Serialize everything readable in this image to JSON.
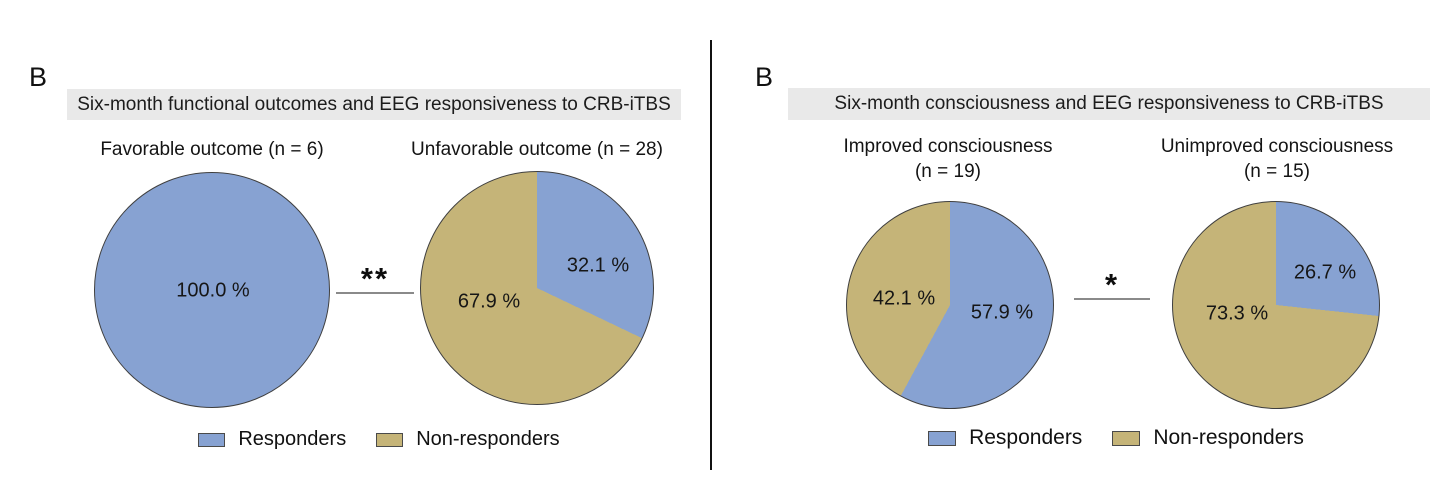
{
  "colors": {
    "Responders": "#87A2D2",
    "Non-responders": "#C5B478",
    "pie_border": "#3f3f3f",
    "title_background": "#e9e9e9",
    "significance_line": "#8a8a8a",
    "divider": "#111111"
  },
  "chart_data": [
    {
      "type": "pie",
      "panel_label": "B",
      "title": "Six-month functional outcomes and EEG responsiveness to CRB-iTBS",
      "significance_marker": "**",
      "legend": [
        "Responders",
        "Non-responders"
      ],
      "legend_position": "bottom",
      "colors": {
        "Responders": "#87A2D2",
        "Non-responders": "#C5B478"
      },
      "pies": [
        {
          "subtitle_lines": [
            "Favorable outcome (n = 6)"
          ],
          "n": 6,
          "categories": [
            "Responders"
          ],
          "values": [
            100.0
          ],
          "labels": [
            "100.0 %"
          ]
        },
        {
          "subtitle_lines": [
            "Unfavorable outcome (n = 28)"
          ],
          "n": 28,
          "categories": [
            "Responders",
            "Non-responders"
          ],
          "values": [
            32.1,
            67.9
          ],
          "labels": [
            "32.1 %",
            "67.9 %"
          ]
        }
      ]
    },
    {
      "type": "pie",
      "panel_label": "B",
      "title": "Six-month consciousness and EEG responsiveness to CRB-iTBS",
      "significance_marker": "*",
      "legend": [
        "Responders",
        "Non-responders"
      ],
      "legend_position": "bottom",
      "colors": {
        "Responders": "#87A2D2",
        "Non-responders": "#C5B478"
      },
      "pies": [
        {
          "subtitle_lines": [
            "Improved consciousness",
            "(n = 19)"
          ],
          "n": 19,
          "categories": [
            "Responders",
            "Non-responders"
          ],
          "values": [
            57.9,
            42.1
          ],
          "labels": [
            "57.9 %",
            "42.1 %"
          ]
        },
        {
          "subtitle_lines": [
            "Unimproved consciousness",
            "(n = 15)"
          ],
          "n": 15,
          "categories": [
            "Responders",
            "Non-responders"
          ],
          "values": [
            26.7,
            73.3
          ],
          "labels": [
            "26.7 %",
            "73.3 %"
          ]
        }
      ]
    }
  ]
}
